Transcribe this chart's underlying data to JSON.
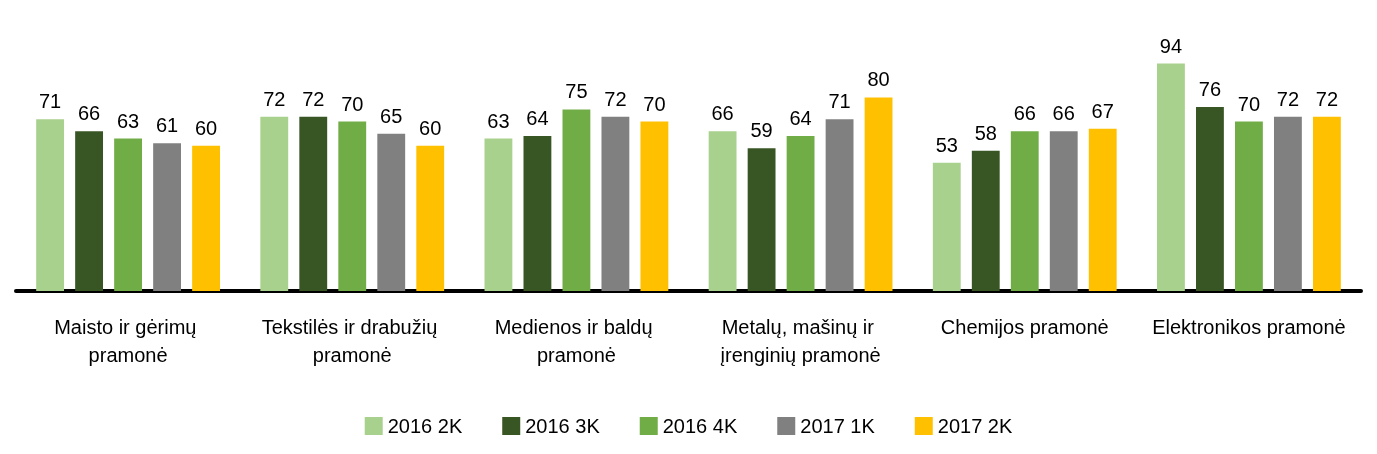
{
  "chart_data": {
    "type": "bar",
    "categories": [
      "Maisto ir gėrimų pramonė",
      "Tekstilės ir drabužių pramonė",
      "Medienos ir baldų pramonė",
      "Metalų, mašinų ir įrenginių pramonė",
      "Chemijos pramonė",
      "Elektronikos pramonė"
    ],
    "series": [
      {
        "name": "2016 2K",
        "color": "#a9d18e",
        "values": [
          71,
          72,
          63,
          66,
          53,
          94
        ]
      },
      {
        "name": "2016 3K",
        "color": "#375623",
        "values": [
          66,
          72,
          64,
          59,
          58,
          76
        ]
      },
      {
        "name": "2016 4K",
        "color": "#70ad47",
        "values": [
          63,
          70,
          75,
          64,
          66,
          70
        ]
      },
      {
        "name": "2017 1K",
        "color": "#808080",
        "values": [
          61,
          65,
          72,
          71,
          66,
          72
        ]
      },
      {
        "name": "2017 2K",
        "color": "#ffc000",
        "values": [
          60,
          60,
          70,
          80,
          67,
          72
        ]
      }
    ],
    "data_labels": true,
    "legend": "bottom",
    "grid": false
  }
}
